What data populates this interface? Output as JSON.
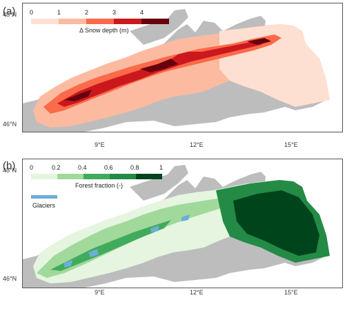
{
  "figure": {
    "panels": [
      {
        "label": "(a)",
        "legend": {
          "title": "Δ Snow depth (m)",
          "ticks": [
            "0",
            "1",
            "2",
            "3",
            "4"
          ],
          "colors": [
            "#fee0d2",
            "#fcbba1",
            "#fb6a4a",
            "#cb181d",
            "#67000d"
          ]
        },
        "lat_labels": [
          "48°N",
          "46°N"
        ],
        "background_color": "#bdbdbd"
      },
      {
        "label": "(b)",
        "legend": {
          "title": "Forest fraction (-)",
          "ticks": [
            "0",
            "0.2",
            "0.4",
            "0.6",
            "0.8",
            "1"
          ],
          "colors": [
            "#e5f5e0",
            "#a1d99b",
            "#41ab5d",
            "#238b45",
            "#00441b"
          ]
        },
        "glacier_legend": {
          "label": "Glaciers",
          "color": "#6baed6"
        },
        "lat_labels": [
          "48°N",
          "46°N"
        ],
        "lon_labels": [
          "9°E",
          "12°E",
          "15°E"
        ],
        "background_color": "#bdbdbd"
      }
    ]
  }
}
